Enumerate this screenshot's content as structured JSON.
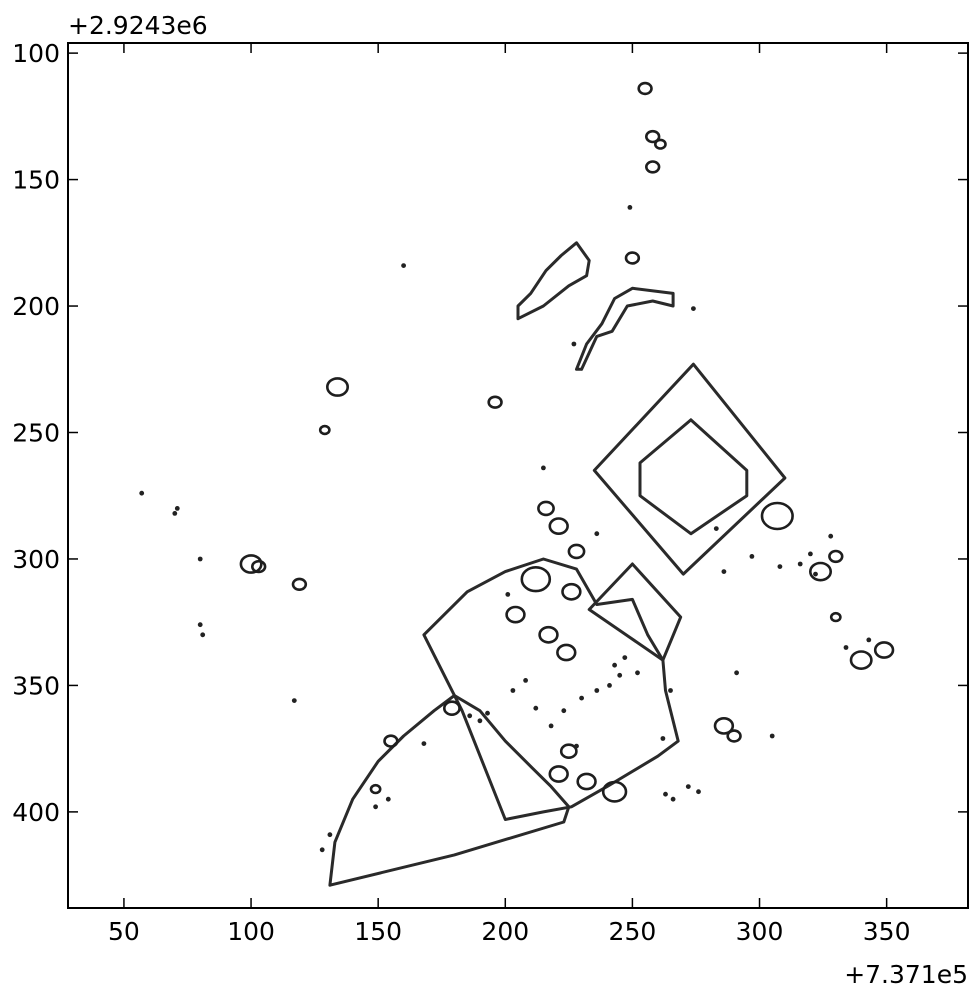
{
  "chart_data": {
    "type": "contour",
    "title": "",
    "xlabel": "",
    "ylabel": "",
    "x_offset_label": "+7.371e5",
    "y_offset_label": "+2.9243e6",
    "xlim": [
      28,
      382
    ],
    "ylim": [
      438,
      96
    ],
    "y_inverted": true,
    "grid": false,
    "legend": "none",
    "line_color": "#2a2a2a",
    "x_ticks": [
      50,
      100,
      150,
      200,
      250,
      300,
      350
    ],
    "y_ticks": [
      100,
      150,
      200,
      250,
      300,
      350,
      400
    ],
    "contours": [
      {
        "name": "triangle-parcel",
        "points": [
          [
            131,
            429
          ],
          [
            133,
            412
          ],
          [
            140,
            395
          ],
          [
            150,
            380
          ],
          [
            160,
            370
          ],
          [
            172,
            360
          ],
          [
            180,
            354
          ],
          [
            190,
            360
          ],
          [
            200,
            372
          ],
          [
            210,
            382
          ],
          [
            218,
            390
          ],
          [
            225,
            398
          ],
          [
            223,
            404
          ],
          [
            180,
            417
          ],
          [
            131,
            429
          ]
        ]
      },
      {
        "name": "central-building",
        "points": [
          [
            200,
            403
          ],
          [
            183,
            360
          ],
          [
            168,
            330
          ],
          [
            185,
            313
          ],
          [
            200,
            305
          ],
          [
            215,
            300
          ],
          [
            228,
            304
          ],
          [
            236,
            318
          ],
          [
            250,
            316
          ],
          [
            256,
            330
          ],
          [
            262,
            340
          ],
          [
            263,
            352
          ],
          [
            268,
            372
          ],
          [
            260,
            378
          ],
          [
            240,
            390
          ],
          [
            226,
            398
          ],
          [
            215,
            400
          ],
          [
            200,
            403
          ]
        ]
      },
      {
        "name": "square-outer",
        "points": [
          [
            274,
            223
          ],
          [
            310,
            268
          ],
          [
            270,
            306
          ],
          [
            235,
            265
          ],
          [
            274,
            223
          ]
        ]
      },
      {
        "name": "square-inner",
        "points": [
          [
            273,
            245
          ],
          [
            295,
            265
          ],
          [
            295,
            275
          ],
          [
            273,
            290
          ],
          [
            253,
            275
          ],
          [
            253,
            262
          ],
          [
            273,
            245
          ]
        ]
      },
      {
        "name": "small-square",
        "points": [
          [
            250,
            302
          ],
          [
            269,
            323
          ],
          [
            262,
            340
          ],
          [
            233,
            320
          ],
          [
            250,
            302
          ]
        ]
      },
      {
        "name": "upper-cluster",
        "points": [
          [
            230,
            225
          ],
          [
            236,
            212
          ],
          [
            242,
            210
          ],
          [
            248,
            200
          ],
          [
            258,
            198
          ],
          [
            266,
            200
          ],
          [
            266,
            195
          ],
          [
            250,
            193
          ],
          [
            243,
            197
          ],
          [
            238,
            207
          ],
          [
            232,
            215
          ],
          [
            228,
            225
          ],
          [
            230,
            225
          ]
        ]
      },
      {
        "name": "upper-left-cluster",
        "points": [
          [
            205,
            205
          ],
          [
            215,
            200
          ],
          [
            225,
            192
          ],
          [
            232,
            188
          ],
          [
            233,
            182
          ],
          [
            228,
            175
          ],
          [
            222,
            180
          ],
          [
            216,
            186
          ],
          [
            210,
            195
          ],
          [
            205,
            200
          ],
          [
            205,
            205
          ]
        ]
      }
    ],
    "blobs": [
      {
        "cx": 255,
        "cy": 114,
        "r": 2.5
      },
      {
        "cx": 258,
        "cy": 133,
        "r": 2.5
      },
      {
        "cx": 261,
        "cy": 136,
        "r": 2
      },
      {
        "cx": 258,
        "cy": 145,
        "r": 2.5
      },
      {
        "cx": 250,
        "cy": 181,
        "r": 2.5
      },
      {
        "cx": 134,
        "cy": 232,
        "r": 4
      },
      {
        "cx": 196,
        "cy": 238,
        "r": 2.5
      },
      {
        "cx": 129,
        "cy": 249,
        "r": 1.8
      },
      {
        "cx": 286,
        "cy": 366,
        "r": 3.5
      },
      {
        "cx": 290,
        "cy": 370,
        "r": 2.5
      },
      {
        "cx": 330,
        "cy": 299,
        "r": 2.5
      },
      {
        "cx": 340,
        "cy": 340,
        "r": 4
      },
      {
        "cx": 349,
        "cy": 336,
        "r": 3.5
      },
      {
        "cx": 324,
        "cy": 305,
        "r": 4
      },
      {
        "cx": 330,
        "cy": 323,
        "r": 1.8
      },
      {
        "cx": 307,
        "cy": 283,
        "r": 6
      },
      {
        "cx": 216,
        "cy": 280,
        "r": 3
      },
      {
        "cx": 221,
        "cy": 287,
        "r": 3.5
      },
      {
        "cx": 228,
        "cy": 297,
        "r": 3
      },
      {
        "cx": 212,
        "cy": 308,
        "r": 5.5
      },
      {
        "cx": 226,
        "cy": 313,
        "r": 3.5
      },
      {
        "cx": 204,
        "cy": 322,
        "r": 3.5
      },
      {
        "cx": 217,
        "cy": 330,
        "r": 3.5
      },
      {
        "cx": 224,
        "cy": 337,
        "r": 3.5
      },
      {
        "cx": 221,
        "cy": 385,
        "r": 3.5
      },
      {
        "cx": 232,
        "cy": 388,
        "r": 3.5
      },
      {
        "cx": 243,
        "cy": 392,
        "r": 4.5
      },
      {
        "cx": 225,
        "cy": 376,
        "r": 3
      },
      {
        "cx": 100,
        "cy": 302,
        "r": 4
      },
      {
        "cx": 103,
        "cy": 303,
        "r": 2.5
      },
      {
        "cx": 119,
        "cy": 310,
        "r": 2.5
      },
      {
        "cx": 155,
        "cy": 372,
        "r": 2.5
      },
      {
        "cx": 149,
        "cy": 391,
        "r": 1.8
      },
      {
        "cx": 179,
        "cy": 359,
        "r": 3
      }
    ],
    "dots": [
      [
        57,
        274
      ],
      [
        71,
        280
      ],
      [
        70,
        282
      ],
      [
        80,
        300
      ],
      [
        81,
        330
      ],
      [
        80,
        326
      ],
      [
        117,
        356
      ],
      [
        128,
        415
      ],
      [
        131,
        409
      ],
      [
        160,
        184
      ],
      [
        215,
        264
      ],
      [
        201,
        314
      ],
      [
        249,
        161
      ],
      [
        274,
        201
      ],
      [
        291,
        345
      ],
      [
        305,
        370
      ],
      [
        276,
        392
      ],
      [
        266,
        395
      ],
      [
        263,
        393
      ],
      [
        272,
        390
      ],
      [
        236,
        290
      ],
      [
        252,
        345
      ],
      [
        247,
        339
      ],
      [
        245,
        346
      ],
      [
        241,
        350
      ],
      [
        236,
        352
      ],
      [
        230,
        355
      ],
      [
        223,
        360
      ],
      [
        228,
        374
      ],
      [
        243,
        342
      ],
      [
        154,
        395
      ],
      [
        168,
        373
      ],
      [
        149,
        398
      ],
      [
        190,
        364
      ],
      [
        186,
        362
      ],
      [
        193,
        361
      ],
      [
        208,
        348
      ],
      [
        203,
        352
      ],
      [
        212,
        359
      ],
      [
        218,
        366
      ],
      [
        265,
        352
      ],
      [
        262,
        371
      ],
      [
        283,
        288
      ],
      [
        286,
        305
      ],
      [
        320,
        298
      ],
      [
        322,
        306
      ],
      [
        316,
        302
      ],
      [
        328,
        291
      ],
      [
        297,
        299
      ],
      [
        308,
        303
      ],
      [
        334,
        335
      ],
      [
        343,
        332
      ],
      [
        227,
        215
      ]
    ]
  }
}
